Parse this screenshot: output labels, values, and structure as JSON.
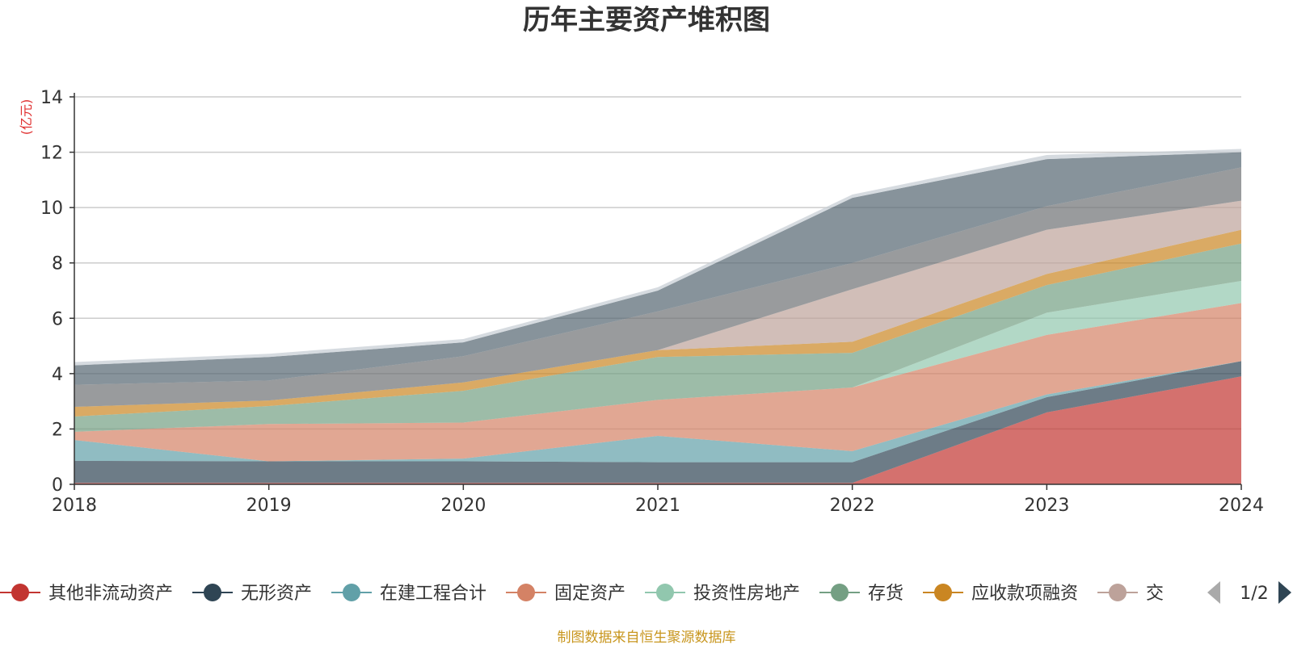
{
  "chart_data": {
    "type": "area",
    "stacked": true,
    "title": "历年主要资产堆积图",
    "ylabel": "(亿元)",
    "xlabel": "",
    "x": [
      "2018",
      "2019",
      "2020",
      "2021",
      "2022",
      "2023",
      "2024"
    ],
    "ylim": [
      0,
      14
    ],
    "yticks": [
      0,
      2,
      4,
      6,
      8,
      10,
      12,
      14
    ],
    "grid": true,
    "legend_position": "bottom",
    "series": [
      {
        "name": "其他非流动资产",
        "color": "#c23531",
        "values": [
          0.05,
          0.05,
          0.05,
          0.05,
          0.05,
          2.6,
          3.9
        ],
        "legend_visible": true
      },
      {
        "name": "无形资产",
        "color": "#2f4554",
        "values": [
          0.8,
          0.78,
          0.78,
          0.75,
          0.75,
          0.55,
          0.55
        ],
        "legend_visible": true
      },
      {
        "name": "在建工程合计",
        "color": "#61a0a8",
        "values": [
          0.75,
          0.0,
          0.1,
          0.95,
          0.4,
          0.1,
          0.0
        ],
        "legend_visible": true
      },
      {
        "name": "固定资产",
        "color": "#d48265",
        "values": [
          0.3,
          1.35,
          1.3,
          1.3,
          2.3,
          2.15,
          2.1
        ],
        "legend_visible": true
      },
      {
        "name": "投资性房地产",
        "color": "#91c7ae",
        "values": [
          0.0,
          0.0,
          0.0,
          0.0,
          0.0,
          0.8,
          0.8
        ],
        "legend_visible": true
      },
      {
        "name": "存货",
        "color": "#749f83",
        "values": [
          0.55,
          0.65,
          1.15,
          1.55,
          1.25,
          1.0,
          1.35
        ],
        "legend_visible": true
      },
      {
        "name": "应收款项融资",
        "color": "#ca8622",
        "values": [
          0.35,
          0.2,
          0.3,
          0.25,
          0.4,
          0.4,
          0.5
        ],
        "legend_visible": true
      },
      {
        "name": "",
        "color": "#bda29a",
        "values": [
          0.0,
          0.0,
          0.0,
          0.0,
          1.9,
          1.6,
          1.05
        ],
        "legend_visible": true
      },
      {
        "name": "",
        "color": "#6e7074",
        "values": [
          0.8,
          0.72,
          0.95,
          1.4,
          0.95,
          0.85,
          1.2
        ],
        "legend_visible": false
      },
      {
        "name": "",
        "color": "#546570",
        "values": [
          0.7,
          0.85,
          0.5,
          0.75,
          2.35,
          1.7,
          0.55
        ],
        "legend_visible": false
      },
      {
        "name": "",
        "color": "#c4ccd3",
        "values": [
          0.12,
          0.12,
          0.12,
          0.12,
          0.12,
          0.15,
          0.12
        ],
        "legend_visible": false
      }
    ],
    "legend_truncated_label": "交",
    "legend_page": "1/2",
    "colors": {
      "ylabel": "#e03030",
      "source": "#c8961e",
      "grid": "#cccccc",
      "pager_active": "#2f4554",
      "pager_inactive": "#aaaaaa"
    }
  },
  "footer": {
    "source": "制图数据来自恒生聚源数据库"
  }
}
